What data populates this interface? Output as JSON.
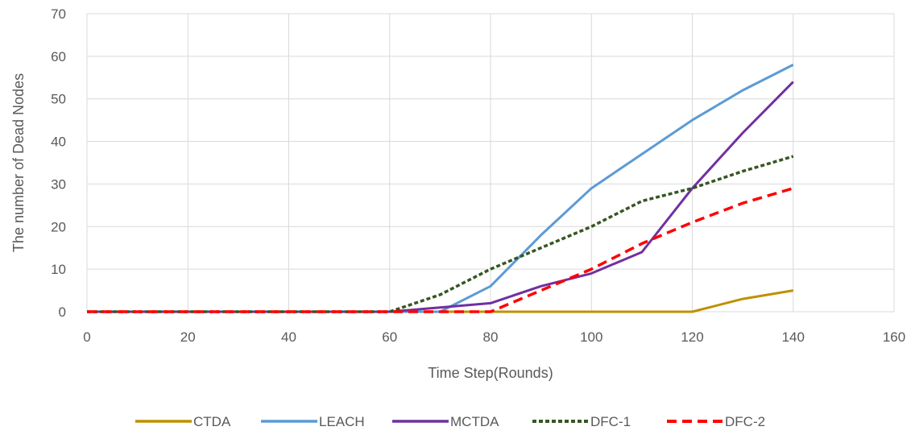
{
  "chart_data": {
    "type": "line",
    "title": "",
    "xlabel": "Time Step(Rounds)",
    "ylabel": "The number of Dead Nodes",
    "xlim": [
      0,
      160
    ],
    "ylim": [
      0,
      70
    ],
    "xticks": [
      0,
      20,
      40,
      60,
      80,
      100,
      120,
      140,
      160
    ],
    "yticks": [
      0,
      10,
      20,
      30,
      40,
      50,
      60,
      70
    ],
    "grid": true,
    "legend_position": "bottom",
    "series": [
      {
        "name": "CTDA",
        "color": "#BF9000",
        "dash": "solid",
        "x": [
          0,
          10,
          20,
          30,
          40,
          50,
          60,
          70,
          80,
          90,
          100,
          110,
          120,
          130,
          140
        ],
        "y": [
          0,
          0,
          0,
          0,
          0,
          0,
          0,
          0,
          0,
          0,
          0,
          0,
          0,
          3,
          5
        ]
      },
      {
        "name": "LEACH",
        "color": "#5B9BD5",
        "dash": "solid",
        "x": [
          0,
          10,
          20,
          30,
          40,
          50,
          60,
          70,
          80,
          90,
          100,
          110,
          120,
          130,
          140
        ],
        "y": [
          0,
          0,
          0,
          0,
          0,
          0,
          0,
          0,
          6,
          18,
          29,
          37,
          45,
          52,
          58
        ]
      },
      {
        "name": "MCTDA",
        "color": "#7030A0",
        "dash": "solid",
        "x": [
          0,
          10,
          20,
          30,
          40,
          50,
          60,
          70,
          80,
          90,
          100,
          110,
          120,
          130,
          140
        ],
        "y": [
          0,
          0,
          0,
          0,
          0,
          0,
          0,
          1,
          2,
          6,
          9,
          14,
          29,
          42,
          54
        ]
      },
      {
        "name": "DFC-1",
        "color": "#375623",
        "dash": "dotted",
        "x": [
          0,
          10,
          20,
          30,
          40,
          50,
          60,
          70,
          80,
          90,
          100,
          110,
          120,
          130,
          140
        ],
        "y": [
          0,
          0,
          0,
          0,
          0,
          0,
          0,
          4,
          10,
          15,
          20,
          26,
          29,
          33,
          36.5
        ]
      },
      {
        "name": "DFC-2",
        "color": "#FF0000",
        "dash": "dashed",
        "x": [
          0,
          10,
          20,
          30,
          40,
          50,
          60,
          70,
          80,
          90,
          100,
          110,
          120,
          130,
          140
        ],
        "y": [
          0,
          0,
          0,
          0,
          0,
          0,
          0,
          0,
          0,
          5,
          10,
          16,
          21,
          25.5,
          29
        ]
      }
    ]
  }
}
